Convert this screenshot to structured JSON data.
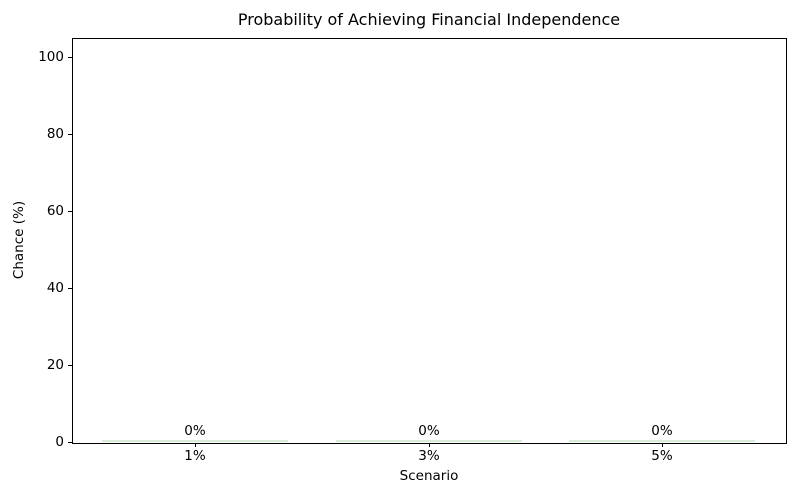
{
  "chart_data": {
    "type": "bar",
    "title": "Probability of Achieving Financial Independence",
    "xlabel": "Scenario",
    "ylabel": "Chance (%)",
    "categories": [
      "1%",
      "3%",
      "5%"
    ],
    "values": [
      0,
      0,
      0
    ],
    "bar_value_labels": [
      "0%",
      "0%",
      "0%"
    ],
    "yticks": [
      0,
      20,
      40,
      60,
      80,
      100
    ],
    "ylim": [
      0,
      105
    ],
    "grid": false,
    "legend": "none",
    "bar_color": "#b9dcba",
    "axis_color": "#000000",
    "text_color": "#000000",
    "background_color": "#ffffff"
  }
}
